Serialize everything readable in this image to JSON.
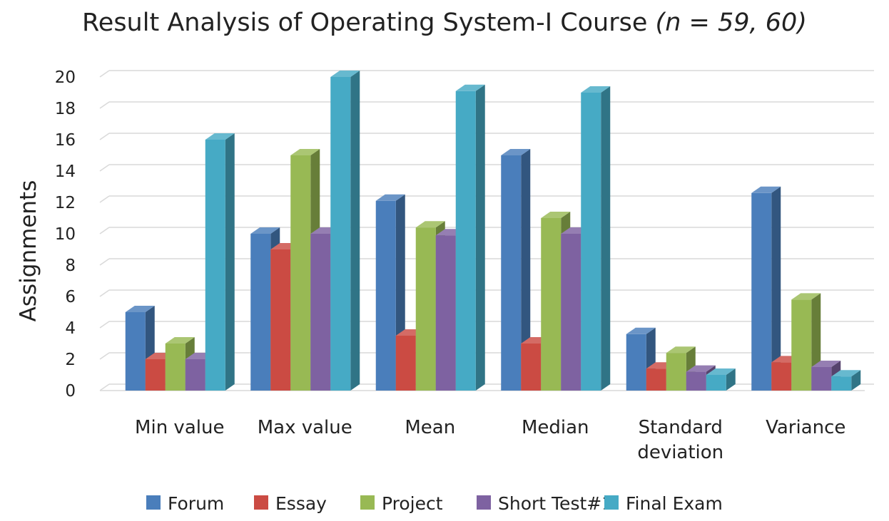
{
  "chart_data": {
    "type": "bar",
    "title": "Result Analysis of Operating System-I Course",
    "title_n": "(n = 59, 60)",
    "xlabel": "",
    "ylabel": "Assignments",
    "ylim": [
      0,
      20
    ],
    "yticks": [
      0,
      2,
      4,
      6,
      8,
      10,
      12,
      14,
      16,
      18,
      20
    ],
    "categories": [
      "Min value",
      "Max value",
      "Mean",
      "Median",
      "Standard deviation",
      "Variance"
    ],
    "category_lines": [
      [
        "Min value"
      ],
      [
        "Max value"
      ],
      [
        "Mean"
      ],
      [
        "Median"
      ],
      [
        "Standard",
        "deviation"
      ],
      [
        "Variance"
      ]
    ],
    "series": [
      {
        "name": "Forum",
        "color": "#4a7ebb",
        "values": [
          5,
          10,
          12.1,
          15,
          3.6,
          12.6
        ]
      },
      {
        "name": "Essay",
        "color": "#cb4b43",
        "values": [
          2,
          9,
          3.5,
          3,
          1.4,
          1.8
        ]
      },
      {
        "name": "Project",
        "color": "#98b954",
        "values": [
          3,
          15,
          10.4,
          11,
          2.4,
          5.8
        ]
      },
      {
        "name": "Short Test#1",
        "color": "#7e62a1",
        "values": [
          2,
          10,
          9.9,
          10,
          1.2,
          1.5
        ]
      },
      {
        "name": "Final Exam",
        "color": "#46aac5",
        "values": [
          16,
          20,
          19.1,
          19,
          1,
          0.9
        ]
      }
    ],
    "grid": true,
    "legend": "bottom",
    "style": "3d-clustered-column"
  }
}
